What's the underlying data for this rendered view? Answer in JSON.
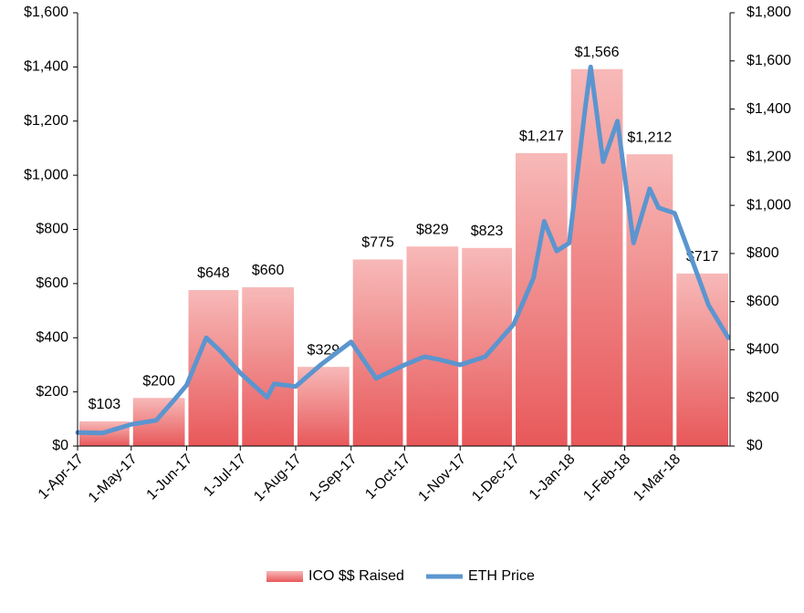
{
  "chart_data": {
    "type": "bar",
    "xlim": [
      "2017-04-01",
      "2018-04-01"
    ],
    "xticks": [
      {
        "value": "2017-04-01",
        "label": "1-Apr-17"
      },
      {
        "value": "2017-05-01",
        "label": "1-May-17"
      },
      {
        "value": "2017-06-01",
        "label": "1-Jun-17"
      },
      {
        "value": "2017-07-01",
        "label": "1-Jul-17"
      },
      {
        "value": "2017-08-01",
        "label": "1-Aug-17"
      },
      {
        "value": "2017-09-01",
        "label": "1-Sep-17"
      },
      {
        "value": "2017-10-01",
        "label": "1-Oct-17"
      },
      {
        "value": "2017-11-01",
        "label": "1-Nov-17"
      },
      {
        "value": "2017-12-01",
        "label": "1-Dec-17"
      },
      {
        "value": "2018-01-01",
        "label": "1-Jan-18"
      },
      {
        "value": "2018-02-01",
        "label": "1-Feb-18"
      },
      {
        "value": "2018-03-01",
        "label": "1-Mar-18"
      }
    ],
    "ylim": [
      0,
      1600
    ],
    "yticks": [
      {
        "value": 0,
        "label": "$0"
      },
      {
        "value": 200,
        "label": "$200"
      },
      {
        "value": 400,
        "label": "$400"
      },
      {
        "value": 600,
        "label": "$600"
      },
      {
        "value": 800,
        "label": "$800"
      },
      {
        "value": 1000,
        "label": "$1,000"
      },
      {
        "value": 1200,
        "label": "$1,200"
      },
      {
        "value": 1400,
        "label": "$1,400"
      },
      {
        "value": 1600,
        "label": "$1,600"
      }
    ],
    "y2lim": [
      0,
      1800
    ],
    "y2ticks": [
      {
        "value": 0,
        "label": "$0"
      },
      {
        "value": 200,
        "label": "$200"
      },
      {
        "value": 400,
        "label": "$400"
      },
      {
        "value": 600,
        "label": "$600"
      },
      {
        "value": 800,
        "label": "$800"
      },
      {
        "value": 1000,
        "label": "$1,000"
      },
      {
        "value": 1200,
        "label": "$1,200"
      },
      {
        "value": 1400,
        "label": "$1,400"
      },
      {
        "value": 1600,
        "label": "$1,600"
      },
      {
        "value": 1800,
        "label": "$1,800"
      }
    ],
    "series": [
      {
        "name": "ICO $$ Raised",
        "type": "bar",
        "axis": "y2",
        "color": "#e8585a",
        "values": [
          103,
          200,
          648,
          660,
          329,
          775,
          829,
          823,
          1217,
          1566,
          1212,
          717
        ],
        "value_labels": [
          "$103",
          "$200",
          "$648",
          "$660",
          "$329",
          "$775",
          "$829",
          "$823",
          "$1,217",
          "$1,566",
          "$1,212",
          "$717"
        ]
      },
      {
        "name": "ETH Price",
        "type": "line",
        "color": "#5b95cf",
        "x": [
          "2017-04-01",
          "2017-04-15",
          "2017-05-01",
          "2017-05-15",
          "2017-05-25",
          "2017-06-01",
          "2017-06-12",
          "2017-06-20",
          "2017-07-01",
          "2017-07-16",
          "2017-07-20",
          "2017-08-01",
          "2017-08-15",
          "2017-09-01",
          "2017-09-15",
          "2017-10-01",
          "2017-10-12",
          "2017-10-20",
          "2017-11-01",
          "2017-11-15",
          "2017-12-01",
          "2017-12-12",
          "2017-12-18",
          "2017-12-25",
          "2018-01-01",
          "2018-01-10",
          "2018-01-13",
          "2018-01-20",
          "2018-01-28",
          "2018-02-06",
          "2018-02-15",
          "2018-02-20",
          "2018-03-01",
          "2018-03-10",
          "2018-03-20",
          "2018-03-31"
        ],
        "values": [
          50,
          48,
          80,
          95,
          170,
          225,
          400,
          350,
          270,
          180,
          230,
          220,
          300,
          385,
          250,
          300,
          330,
          320,
          300,
          330,
          450,
          620,
          830,
          720,
          750,
          1250,
          1400,
          1050,
          1200,
          750,
          950,
          880,
          860,
          700,
          520,
          400
        ]
      }
    ],
    "legend": "bottom"
  }
}
